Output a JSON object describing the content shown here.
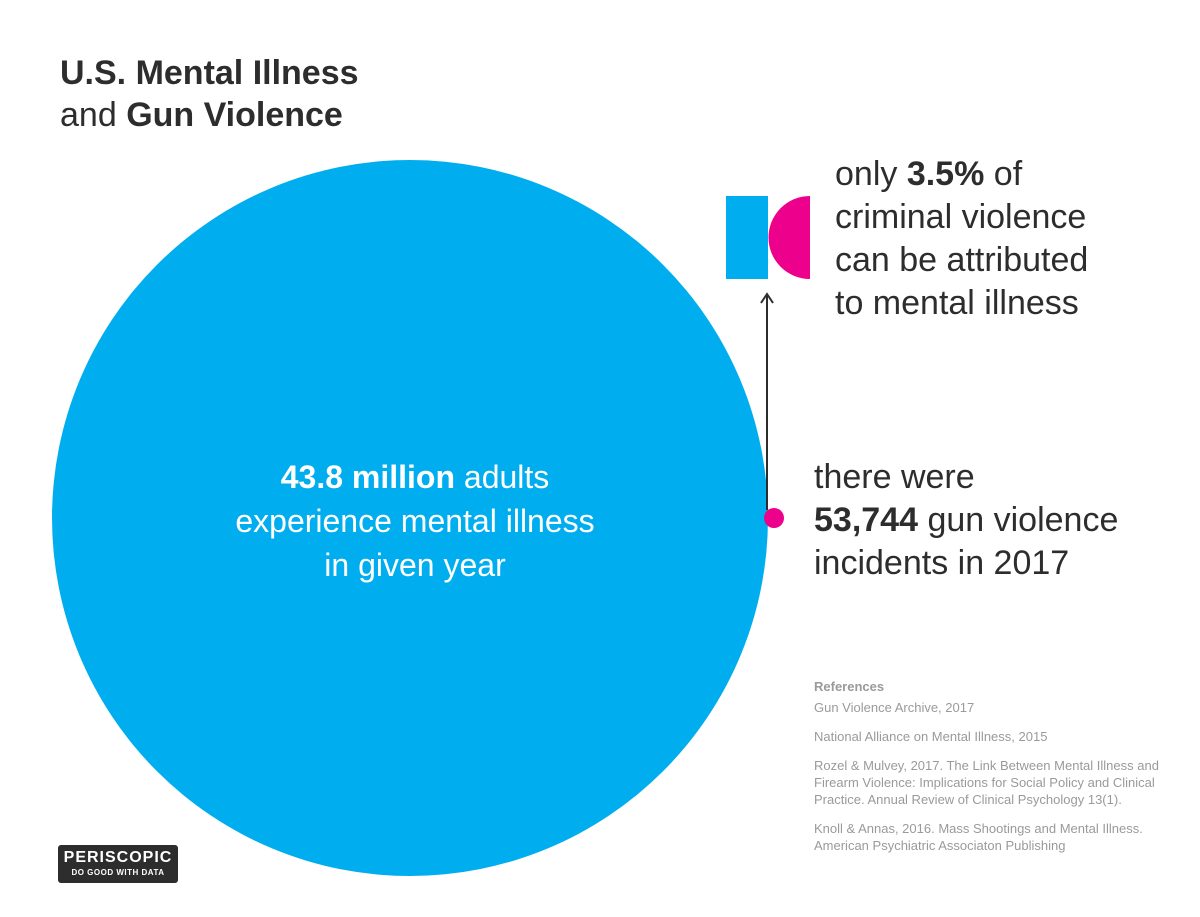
{
  "title": {
    "line1_bold": "U.S. Mental Illness",
    "line2_prefix": "and",
    "line2_bold": "Gun Violence"
  },
  "chart_data": {
    "type": "proportional-area",
    "title": "U.S. Mental Illness and Gun Violence",
    "series": [
      {
        "name": "adults experiencing mental illness in given year",
        "value": 43800000,
        "display": "43.8 million",
        "color": "#00aeef"
      },
      {
        "name": "gun violence incidents in 2017",
        "value": 53744,
        "display": "53,744",
        "color": "#ec008c"
      }
    ],
    "share": {
      "name": "criminal violence attributable to mental illness",
      "value": 3.5,
      "display": "3.5%",
      "colors": [
        "#00aeef",
        "#ec008c",
        "#1b3f8f"
      ]
    }
  },
  "circle_label": {
    "bold": "43.8 million",
    "rest1": "adults",
    "line2": "experience mental illness",
    "line3": "in given year"
  },
  "annotation_top": {
    "prefix": "only",
    "bold": "3.5%",
    "suffix": "of",
    "line2": "criminal violence",
    "line3": "can be attributed",
    "line4": "to mental illness"
  },
  "annotation_bottom": {
    "line1": "there were",
    "bold": "53,744",
    "rest2": "gun violence",
    "line3": "incidents in 2017"
  },
  "references": {
    "heading": "References",
    "items": [
      "Gun Violence Archive, 2017",
      "National Alliance on Mental Illness, 2015",
      "Rozel & Mulvey, 2017. The Link Between Mental Illness and Firearm Violence: Implications for Social Policy and Clinical Practice. Annual Review of Clinical Psychology 13(1).",
      "Knoll & Annas, 2016. Mass Shootings and Mental Illness. American Psychiatric Associaton Publishing"
    ]
  },
  "logo": {
    "name": "PERISCOPIC",
    "tagline": "DO GOOD WITH DATA"
  }
}
